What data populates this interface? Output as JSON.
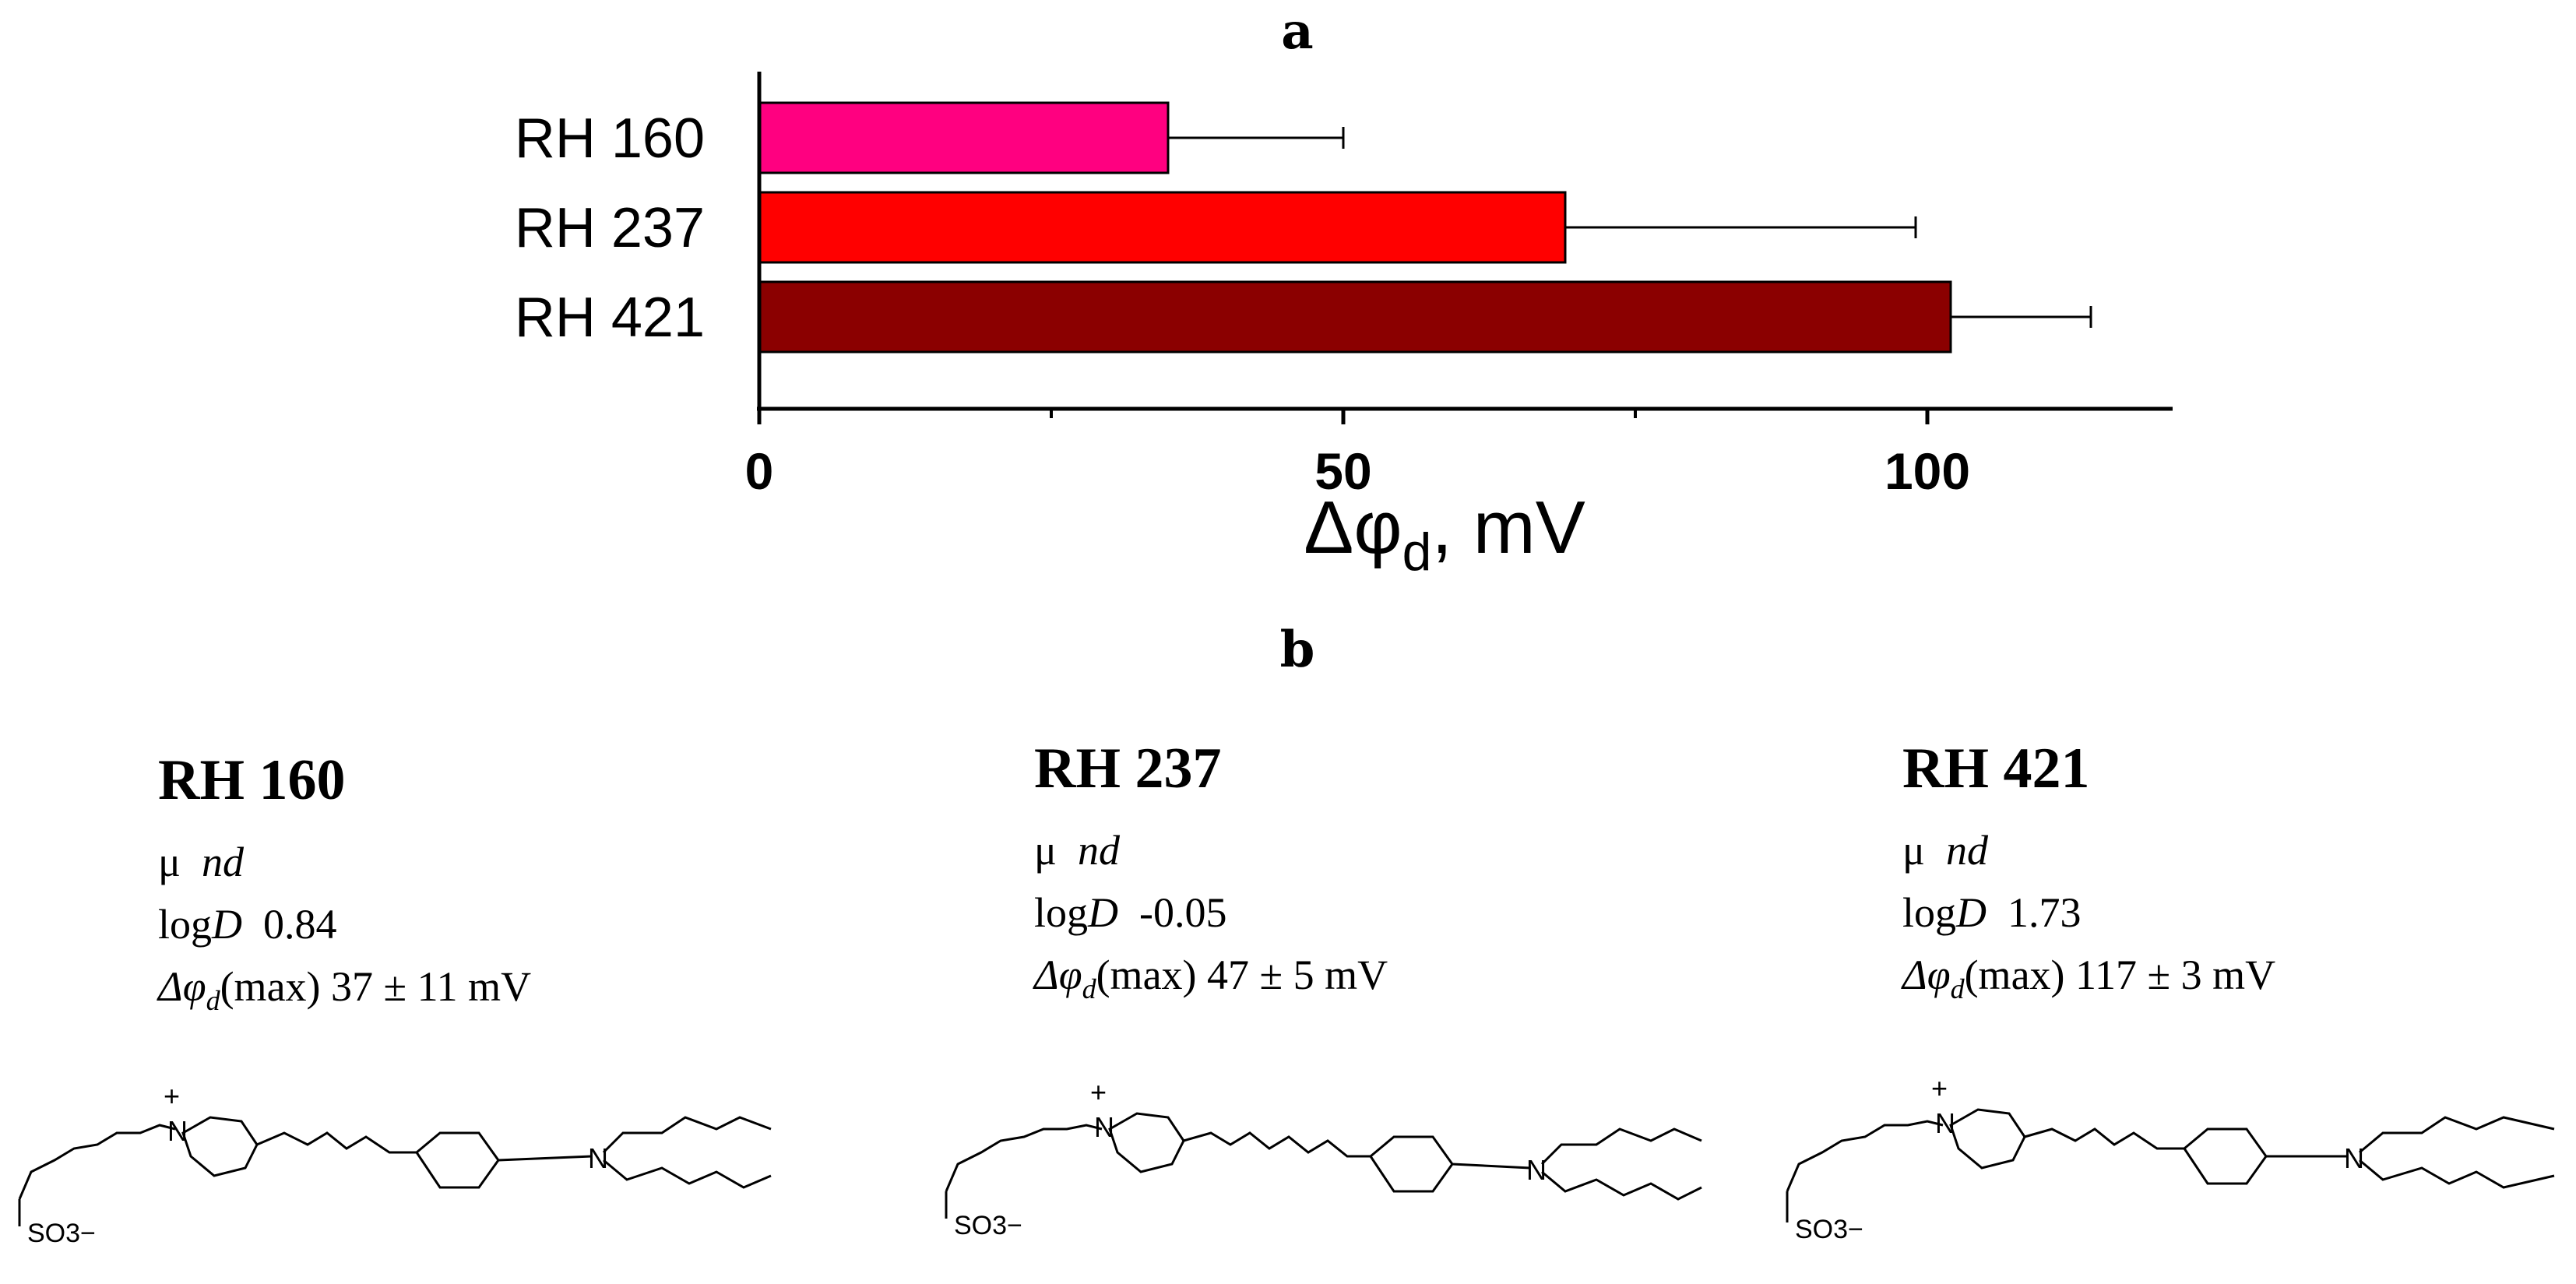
{
  "panels": {
    "a": "a",
    "b": "b"
  },
  "chart_data": {
    "type": "bar",
    "orientation": "horizontal",
    "categories": [
      "RH 160",
      "RH 237",
      "RH 421"
    ],
    "values": [
      35,
      69,
      102
    ],
    "errors": [
      15,
      30,
      12
    ],
    "colors": [
      "#ff0080",
      "#ff0000",
      "#8b0000"
    ],
    "xlim": [
      0,
      121
    ],
    "xticks": [
      0,
      50,
      100
    ],
    "xlabel": {
      "symbol": "Δφ",
      "subscript": "d",
      "rest": ",  mV"
    },
    "title": "",
    "ylabel": ""
  },
  "dyes": [
    {
      "name": "RH 160",
      "mu_label": "μ",
      "mu_value": "nd",
      "logd_label": "log",
      "logd_italic": "D",
      "logd_value": "0.84",
      "dphi_symbol": "Δφ",
      "dphi_sub": "d",
      "dphi_text": "(max) 37 ± 11 mV",
      "sulfonate": "SO3−",
      "charge": "+",
      "nitrogen": "N"
    },
    {
      "name": "RH 237",
      "mu_label": "μ",
      "mu_value": "nd",
      "logd_label": "log",
      "logd_italic": "D",
      "logd_value": "-0.05",
      "dphi_symbol": "Δφ",
      "dphi_sub": "d",
      "dphi_text": "(max) 47 ± 5 mV",
      "sulfonate": "SO3−",
      "charge": "+",
      "nitrogen": "N"
    },
    {
      "name": "RH 421",
      "mu_label": "μ",
      "mu_value": "nd",
      "logd_label": "log",
      "logd_italic": "D",
      "logd_value": "1.73",
      "dphi_symbol": "Δφ",
      "dphi_sub": "d",
      "dphi_text": "(max) 117 ± 3 mV",
      "sulfonate": "SO3−",
      "charge": "+",
      "nitrogen": "N"
    }
  ]
}
